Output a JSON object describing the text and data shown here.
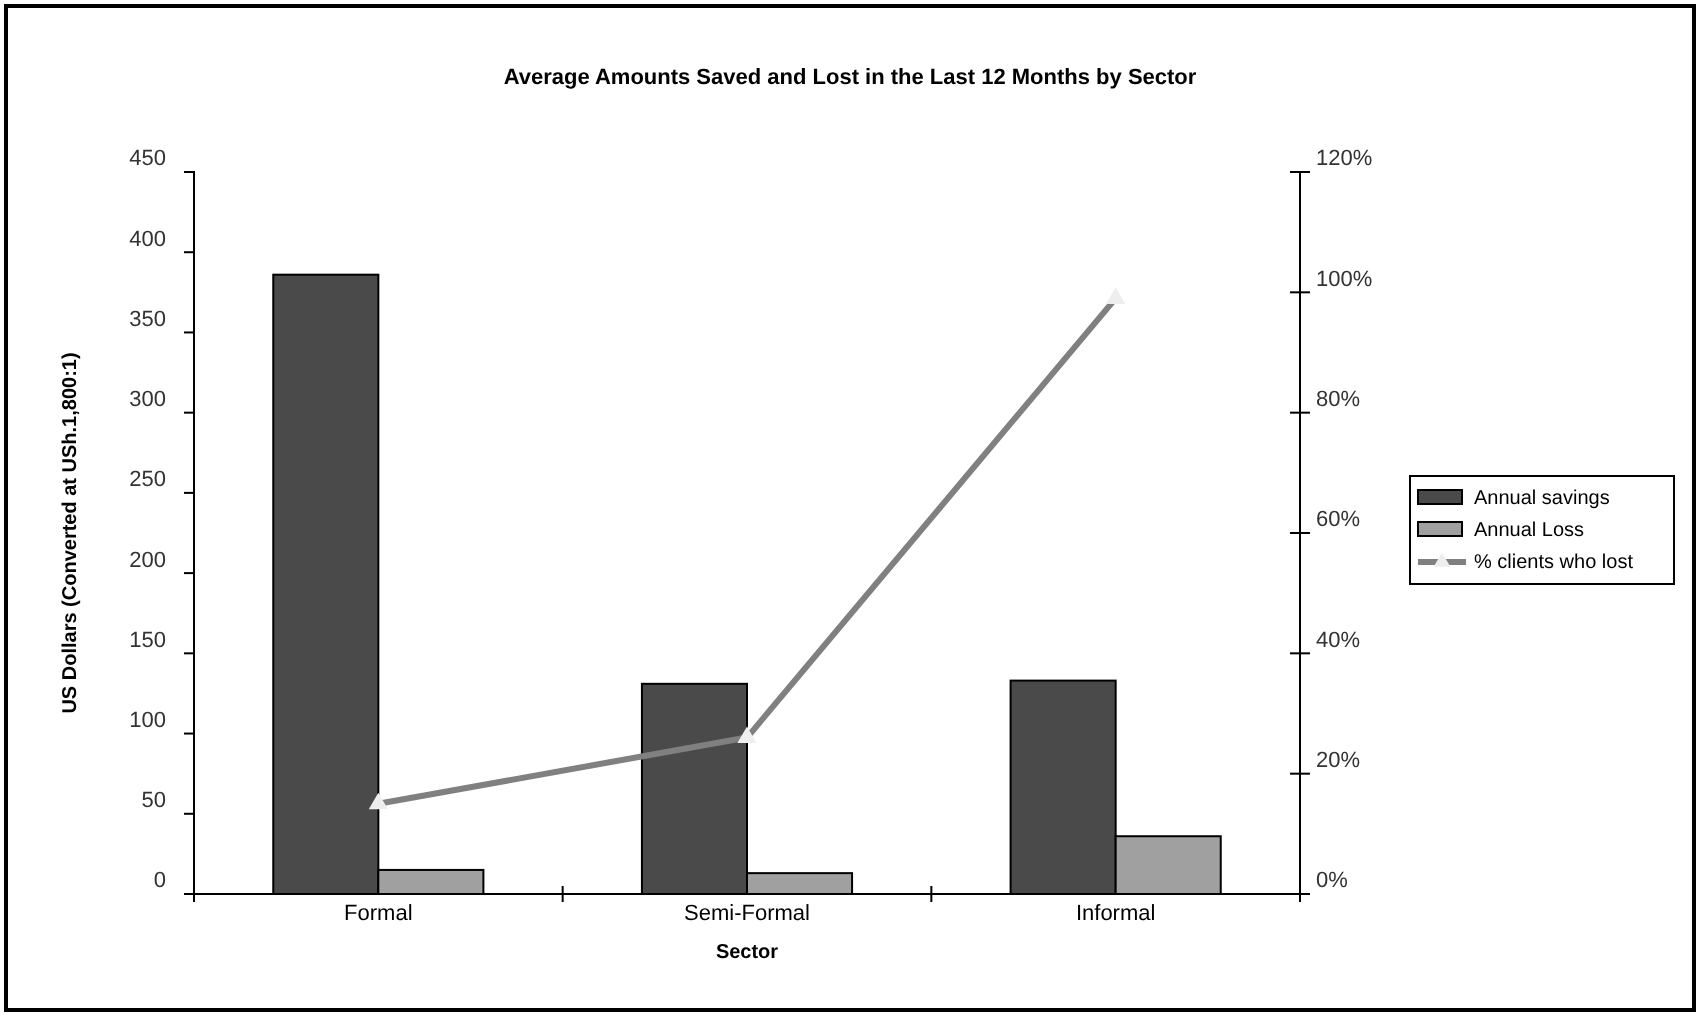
{
  "chart_data": {
    "type": "bar",
    "title": "Average Amounts Saved and Lost in the Last 12 Months by Sector",
    "xlabel": "Sector",
    "ylabel": "US Dollars (Converted at USh.1,800:1)",
    "categories": [
      "Formal",
      "Semi-Formal",
      "Informal"
    ],
    "series": [
      {
        "name": "Annual savings",
        "color": "#4a4a4a",
        "values": [
          386,
          131,
          133
        ]
      },
      {
        "name": "Annual Loss",
        "color": "#a0a0a0",
        "values": [
          15,
          13,
          36
        ]
      },
      {
        "name": "% clients who lost",
        "type": "line",
        "axis": "y2",
        "color": "#808080",
        "values": [
          15,
          26,
          99
        ]
      }
    ],
    "ylim": [
      0,
      450
    ],
    "yticks": [
      0,
      50,
      100,
      150,
      200,
      250,
      300,
      350,
      400,
      450
    ],
    "y2lim": [
      0,
      120
    ],
    "y2ticks": [
      {
        "value": 0,
        "label": "0%"
      },
      {
        "value": 20,
        "label": "20%"
      },
      {
        "value": 40,
        "label": "40%"
      },
      {
        "value": 60,
        "label": "60%"
      },
      {
        "value": 80,
        "label": "80%"
      },
      {
        "value": 100,
        "label": "100%"
      },
      {
        "value": 120,
        "label": "120%"
      }
    ],
    "marker": "triangle",
    "legend": "right"
  }
}
